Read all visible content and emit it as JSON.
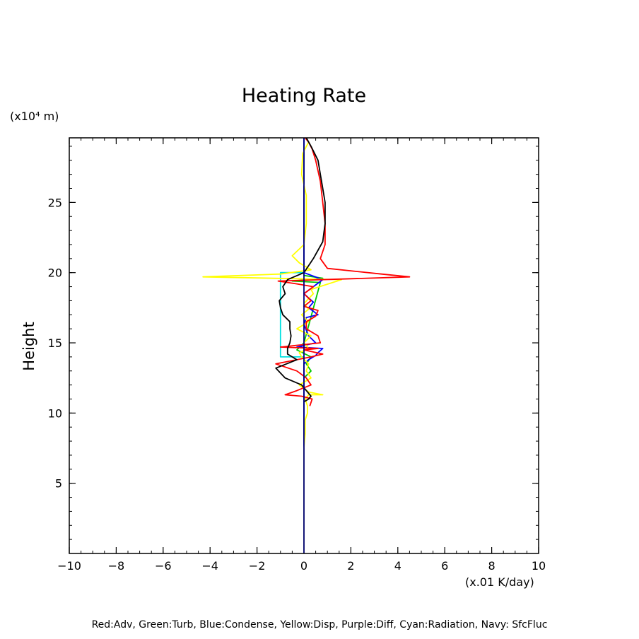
{
  "chart_data": {
    "type": "line",
    "title": "Heating Rate",
    "ylabel": "Height",
    "yunit": "(x10⁴ m)",
    "xunit": "(x.01 K/day)",
    "xlim": [
      -10,
      10
    ],
    "ylim": [
      0,
      29.6
    ],
    "xticks": [
      -10,
      -8,
      -6,
      -4,
      -2,
      0,
      2,
      4,
      6,
      8,
      10
    ],
    "yticks": [
      5,
      10,
      15,
      20,
      25
    ],
    "xtick_labels": [
      "−10",
      "−8",
      "−6",
      "−4",
      "−2",
      "0",
      "2",
      "4",
      "6",
      "8",
      "10"
    ],
    "ytick_labels": [
      "5",
      "10",
      "15",
      "20",
      "25"
    ],
    "footer": "Red:Adv, Green:Turb, Blue:Condense, Yellow:Disp, Purple:Diff, Cyan:Radiation, Navy: SfcFluc",
    "series": [
      {
        "name": "Navy: SfcFluc",
        "color": "#000080",
        "x": [
          0,
          0
        ],
        "y": [
          0,
          29.6
        ]
      },
      {
        "name": "Cyan:Radiation",
        "color": "#00e0e0",
        "x": [
          0,
          0,
          -1.0,
          -1.0,
          0,
          0
        ],
        "y": [
          0,
          14.0,
          14.0,
          20.0,
          20.0,
          29.6
        ]
      },
      {
        "name": "Green:Turb",
        "color": "#00c800",
        "x": [
          0,
          0,
          0.3,
          0.1,
          0.3,
          -0.3,
          0,
          0.7,
          -0.5,
          0.8,
          0,
          0,
          0
        ],
        "y": [
          0,
          12.5,
          13.0,
          13.5,
          14.0,
          14.5,
          15.0,
          19.3,
          19.4,
          19.6,
          19.8,
          20.2,
          29.6
        ]
      },
      {
        "name": "Blue:Condense",
        "color": "#0000ff",
        "x": [
          0,
          0,
          0.2,
          0.5,
          0.6,
          0.8,
          -0.3,
          0.5,
          0.2,
          0,
          0.1,
          0.6,
          0.2,
          0.4,
          0,
          0.8,
          0,
          0
        ],
        "y": [
          0,
          13.5,
          13.8,
          14.1,
          14.3,
          14.6,
          14.7,
          15.0,
          15.5,
          16.3,
          16.8,
          17.0,
          17.5,
          17.9,
          18.5,
          19.5,
          20.0,
          29.6
        ]
      },
      {
        "name": "Yellow:Disp",
        "color": "#ffff00",
        "x": [
          0,
          0,
          0.05,
          0.05,
          0.15,
          0.15,
          0.05,
          0.2,
          0.8,
          0.2,
          -0.2,
          0.3,
          0.1,
          0.2,
          -0.1,
          -0.2,
          0.2,
          0,
          0.3,
          -0.3,
          0.2,
          -0.1,
          0.2,
          0,
          0.4,
          0.3,
          1.6,
          -4.3,
          -1.0,
          0.3,
          -0.2,
          -0.5,
          0,
          0.1,
          0.1,
          -0.1,
          -0.05,
          0.2,
          0.1
        ],
        "y": [
          0,
          7.5,
          8.5,
          9.5,
          10.0,
          10.5,
          11.0,
          11.3,
          11.3,
          11.5,
          12.0,
          12.5,
          13.0,
          13.5,
          14.0,
          14.3,
          14.6,
          15.0,
          15.5,
          16.0,
          16.5,
          17.0,
          17.4,
          17.8,
          18.5,
          18.8,
          19.5,
          19.7,
          19.9,
          20.2,
          20.7,
          21.2,
          22.0,
          23.5,
          25.5,
          27.0,
          28.5,
          29.3,
          29.6
        ]
      },
      {
        "name": "Red:Adv",
        "color": "#ff0000",
        "x": [
          0.25,
          0.35,
          -0.1,
          -0.8,
          -0.3,
          0.3,
          0.1,
          -0.3,
          -1.2,
          0.3,
          0.8,
          0,
          0.6,
          -1.0,
          0.7,
          0.6,
          0.1,
          0.1,
          0.5,
          0.6,
          0,
          0.3,
          0,
          0.4,
          -0.3,
          -1.1,
          4.5,
          3.3,
          1.0,
          0.7,
          0.9,
          0.9,
          0.8,
          0.7,
          0.5,
          0.35,
          0.2,
          0.05
        ],
        "y": [
          10.5,
          11.0,
          11.2,
          11.3,
          11.6,
          12.0,
          12.5,
          13.0,
          13.5,
          14.0,
          14.2,
          14.5,
          14.6,
          14.7,
          15.0,
          15.5,
          16.0,
          16.5,
          16.9,
          17.3,
          17.6,
          18.0,
          18.5,
          19.0,
          19.2,
          19.4,
          19.7,
          19.9,
          20.3,
          21.0,
          22.0,
          23.5,
          25.0,
          26.5,
          28.0,
          28.8,
          29.3,
          29.6
        ]
      },
      {
        "name": "Black",
        "color": "#000000",
        "x": [
          0,
          0.2,
          0.3,
          -0.1,
          -0.8,
          -1.2,
          -0.3,
          -0.7,
          -0.7,
          -0.6,
          -0.55,
          -0.6,
          -0.6,
          -0.9,
          -1.0,
          -1.05,
          -0.8,
          -0.9,
          -0.7,
          0,
          0.4,
          0.8,
          0.9,
          0.9,
          0.8,
          0.7,
          0.6,
          0.3,
          0.1
        ],
        "y": [
          10.8,
          11.0,
          11.2,
          12.0,
          12.5,
          13.2,
          13.8,
          14.2,
          14.6,
          15.0,
          15.5,
          16.0,
          16.5,
          17.0,
          17.5,
          18.0,
          18.5,
          19.0,
          19.5,
          20.0,
          21.0,
          22.2,
          23.5,
          25.0,
          26.0,
          27.0,
          28.0,
          29.0,
          29.6
        ]
      }
    ]
  }
}
